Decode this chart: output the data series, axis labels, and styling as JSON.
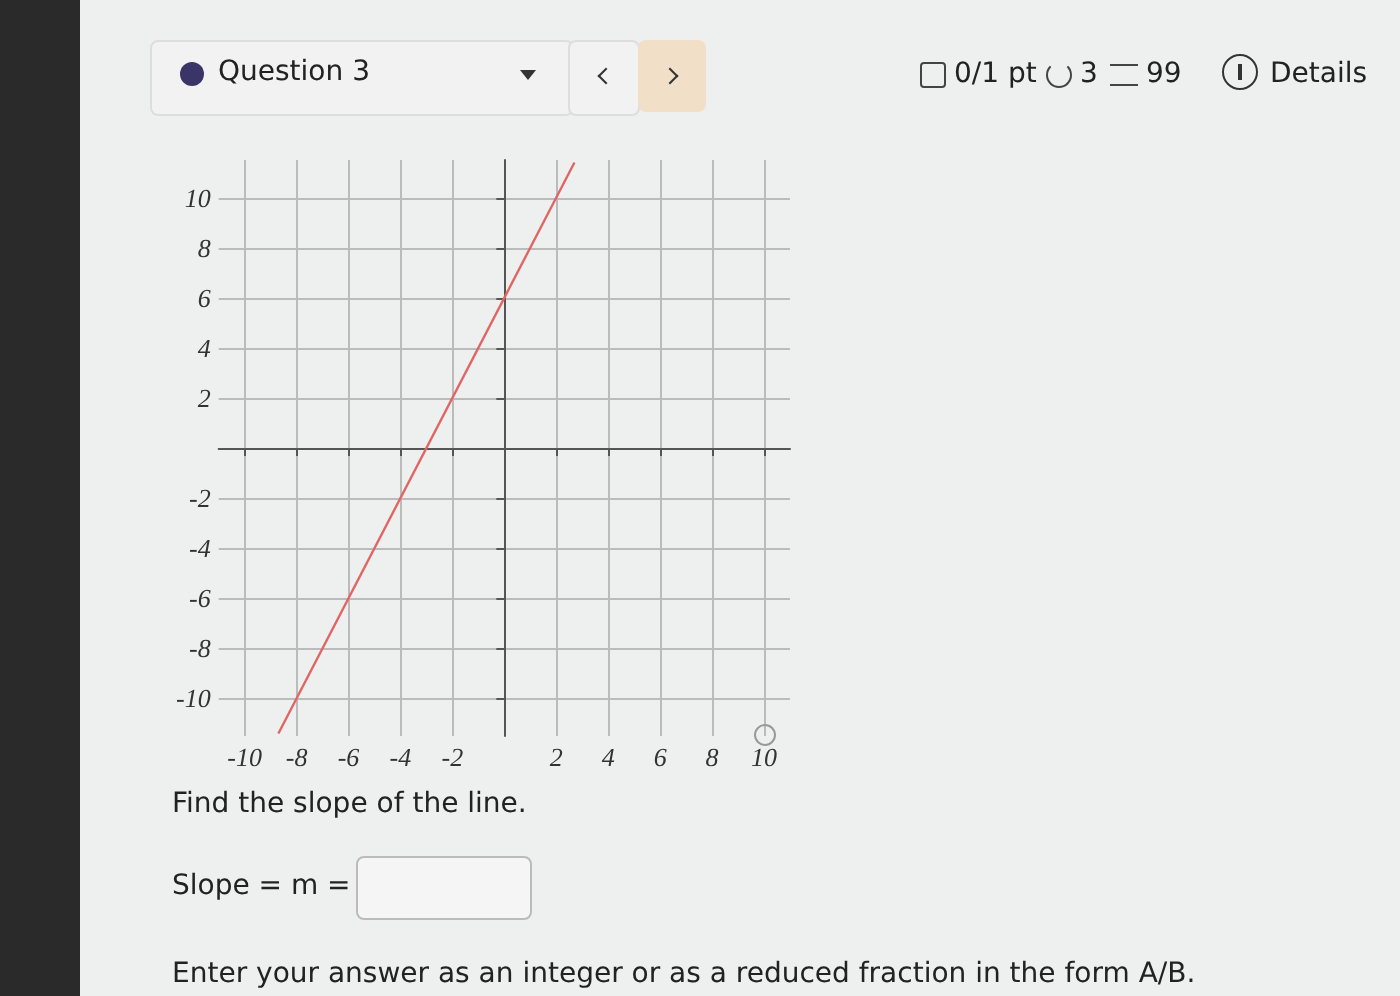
{
  "chart_data": {
    "type": "line",
    "title": "Question 3",
    "annotations": [
      "0/1 pt",
      "3",
      "99",
      "Details",
      "Find the slope of the line.",
      "Slope = m =",
      "Enter your answer as an integer or as a reduced fraction in the form A/B."
    ],
    "x": [
      -8.7,
      2.7
    ],
    "series": [
      {
        "color": "#e06666",
        "values": [
          -11.4,
          11.4
        ]
      }
    ],
    "xlim": [
      -11,
      11
    ],
    "ylim": [
      -11.5,
      11.5
    ],
    "xticks": [
      -10,
      -8,
      -6,
      -4,
      -2,
      {
        "value": 0,
        "label": null
      },
      2,
      4,
      6,
      8,
      10
    ],
    "yticks": [
      -10,
      -8,
      -6,
      -4,
      -2,
      {
        "value": 0,
        "label": null
      },
      2,
      4,
      6,
      8,
      10
    ],
    "grid": true,
    "marker": "none",
    "line_style": "solid"
  }
}
